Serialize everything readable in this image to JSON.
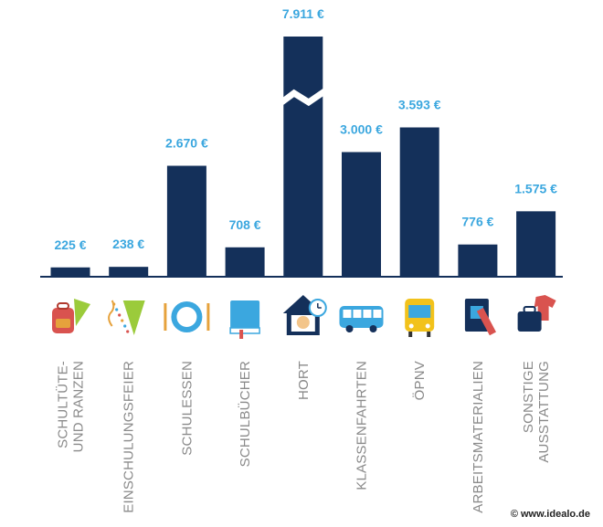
{
  "chart_data": {
    "type": "bar",
    "categories": [
      [
        "SCHULTÜTE-",
        "UND RANZEN"
      ],
      [
        "EINSCHULUNGSFEIER"
      ],
      [
        "SCHULESSEN"
      ],
      [
        "SCHULBÜCHER"
      ],
      [
        "HORT"
      ],
      [
        "KLASSENFAHRTEN"
      ],
      [
        "ÖPNV"
      ],
      [
        "ARBEITSMATERIALIEN"
      ],
      [
        "SONSTIGE",
        "AUSSTATTUNG"
      ]
    ],
    "values": [
      225,
      238,
      2670,
      708,
      7911,
      3000,
      3593,
      776,
      1575
    ],
    "value_labels": [
      "225 €",
      "238 €",
      "2.670 €",
      "708 €",
      "7.911 €",
      "3.000 €",
      "3.593 €",
      "776 €",
      "1.575 €"
    ],
    "axis_break_on": "HORT",
    "ylim": [
      0,
      4000
    ],
    "grid": false,
    "bar_color": "#14305a",
    "label_color": "#3ba7df",
    "icons": [
      "backpack-cone-icon",
      "confetti-cone-icon",
      "plate-cutlery-icon",
      "book-icon",
      "house-clock-icon",
      "bus-icon",
      "tram-icon",
      "notebook-ruler-icon",
      "shirt-bag-icon"
    ]
  },
  "footer": {
    "source": "© www.idealo.de"
  }
}
